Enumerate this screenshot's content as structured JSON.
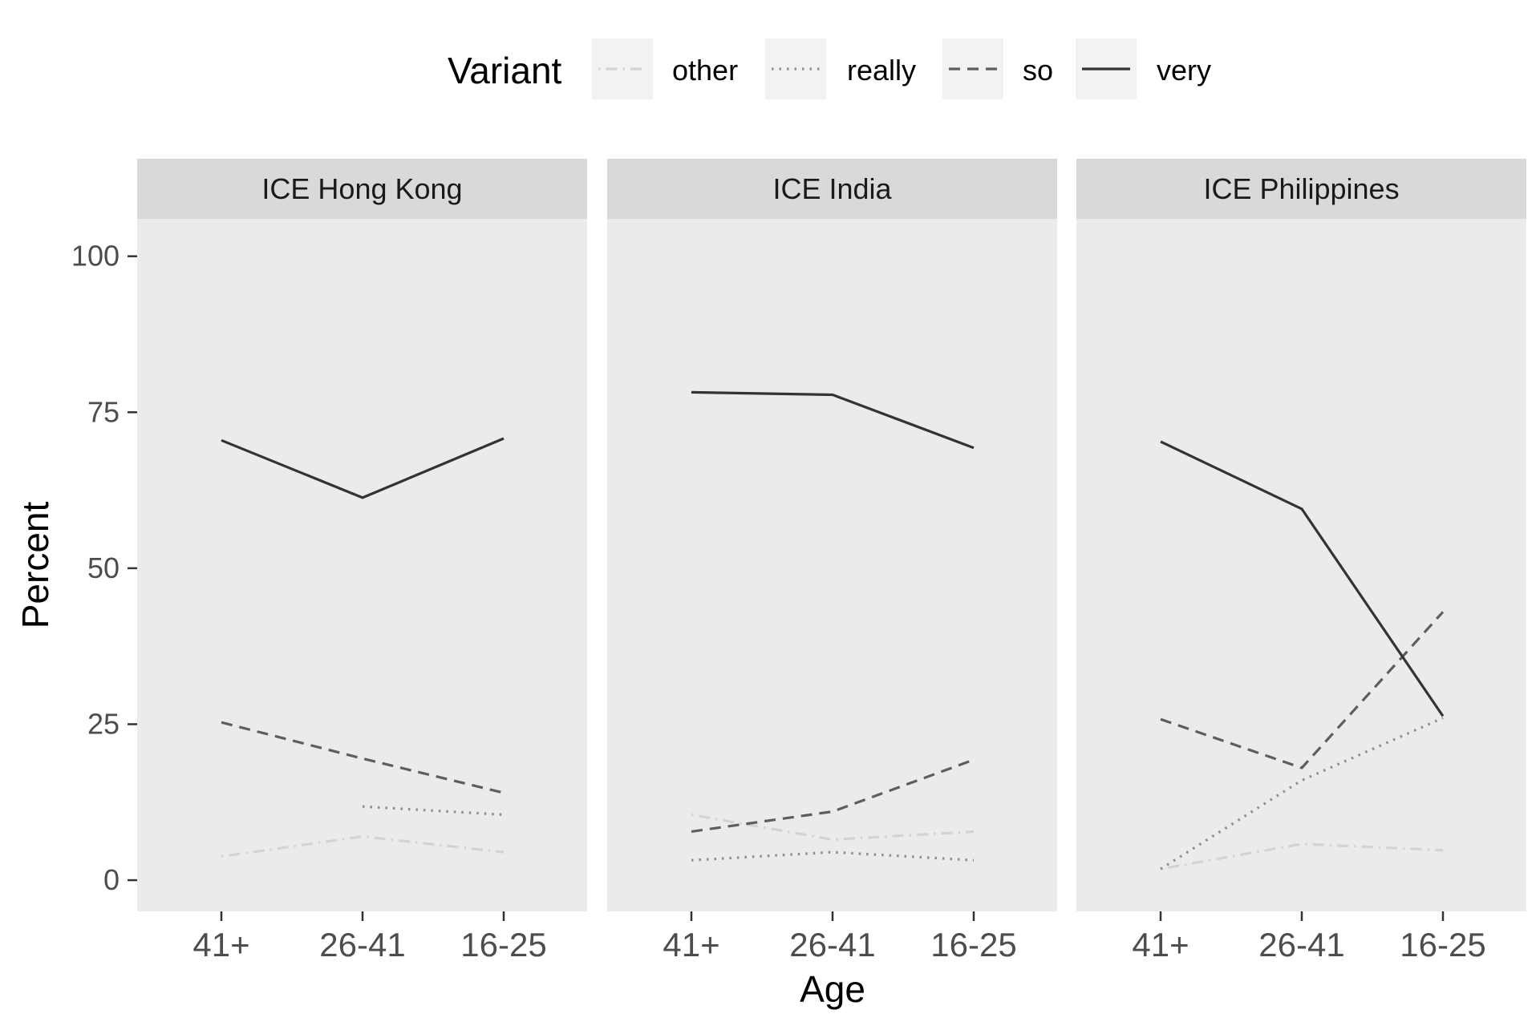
{
  "chart_data": {
    "type": "line",
    "xlabel": "Age",
    "ylabel": "Percent",
    "x": [
      "41+",
      "26-41",
      "16-25"
    ],
    "yticks": [
      0,
      25,
      50,
      75,
      100
    ],
    "ylim": [
      -5,
      106
    ],
    "grid": false,
    "legend": {
      "title": "Variant",
      "placement": "top",
      "entries": [
        "other",
        "really",
        "so",
        "very"
      ]
    },
    "styles": {
      "other": {
        "color": "#d3d3d3",
        "dash": "dotdash"
      },
      "really": {
        "color": "#8c8c8c",
        "dash": "dotted"
      },
      "so": {
        "color": "#5e5e5e",
        "dash": "dashed"
      },
      "very": {
        "color": "#333333",
        "dash": "solid"
      }
    },
    "panels": [
      {
        "title": "ICE Hong Kong",
        "series": [
          {
            "name": "other",
            "values": [
              3.8,
              7.0,
              4.5
            ]
          },
          {
            "name": "really",
            "values": [
              null,
              11.8,
              10.5
            ]
          },
          {
            "name": "so",
            "values": [
              25.3,
              19.5,
              14.0
            ]
          },
          {
            "name": "very",
            "values": [
              70.5,
              61.3,
              70.8
            ]
          }
        ]
      },
      {
        "title": "ICE India",
        "series": [
          {
            "name": "other",
            "values": [
              10.5,
              6.5,
              7.8
            ]
          },
          {
            "name": "really",
            "values": [
              3.2,
              4.5,
              3.2
            ]
          },
          {
            "name": "so",
            "values": [
              7.8,
              11.0,
              19.3
            ]
          },
          {
            "name": "very",
            "values": [
              78.2,
              77.8,
              69.3
            ]
          }
        ]
      },
      {
        "title": "ICE Philippines",
        "series": [
          {
            "name": "other",
            "values": [
              1.8,
              5.8,
              4.8
            ]
          },
          {
            "name": "really",
            "values": [
              1.8,
              16.0,
              26.0
            ]
          },
          {
            "name": "so",
            "values": [
              25.8,
              18.0,
              43.0
            ]
          },
          {
            "name": "very",
            "values": [
              70.3,
              59.5,
              26.3
            ]
          }
        ]
      }
    ]
  }
}
